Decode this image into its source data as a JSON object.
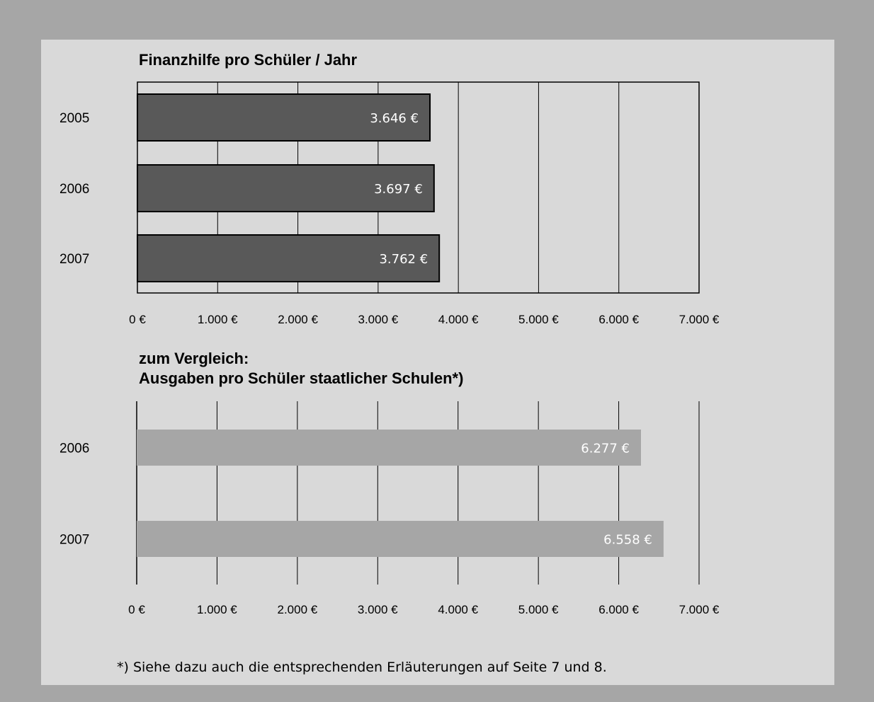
{
  "chart_data": [
    {
      "type": "bar",
      "orientation": "horizontal",
      "title": "Finanzhilfe pro Schüler / Jahr",
      "categories": [
        "2005",
        "2006",
        "2007"
      ],
      "values": [
        3646,
        3697,
        3762
      ],
      "value_labels": [
        "3.646 €",
        "3.697 €",
        "3.762 €"
      ],
      "xlim": [
        0,
        7000
      ],
      "tick_labels": [
        "0 €",
        "1.000 €",
        "2.000 €",
        "3.000 €",
        "4.000 €",
        "5.000 €",
        "6.000 €",
        "7.000 €"
      ],
      "grid": true,
      "bar_color": "#595959",
      "label_color": "#ffffff"
    },
    {
      "type": "bar",
      "orientation": "horizontal",
      "title_line1": "zum Vergleich:",
      "title_line2": "Ausgaben pro Schüler staatlicher Schulen*)",
      "categories": [
        "2006",
        "2007"
      ],
      "values": [
        6277,
        6558
      ],
      "value_labels": [
        "6.277 €",
        "6.558 €"
      ],
      "xlim": [
        0,
        7000
      ],
      "tick_labels": [
        "0 €",
        "1.000 €",
        "2.000 €",
        "3.000 €",
        "4.000 €",
        "5.000 €",
        "6.000 €",
        "7.000 €"
      ],
      "grid": true,
      "bar_color": "#a6a6a6",
      "label_color": "#ffffff"
    }
  ],
  "footnote": "*) Siehe dazu auch die entsprechenden Erläuterungen auf Seite 7 und 8."
}
